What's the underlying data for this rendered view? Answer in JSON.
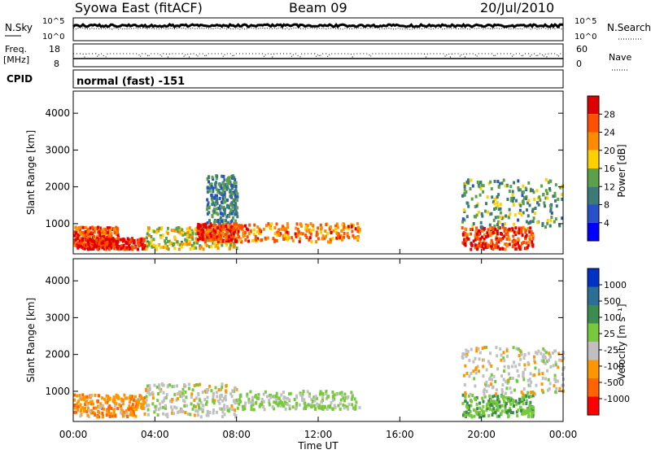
{
  "header": {
    "station": "Syowa East (fitACF)",
    "beam": "Beam 09",
    "date": "20/Jul/2010"
  },
  "aux_panels": {
    "nsky": {
      "label": "N.Sky",
      "ticks": [
        "10^5",
        "10^0"
      ]
    },
    "nsearch": {
      "label": "N.Search",
      "ticks": [
        "10^5",
        "10^0"
      ]
    },
    "freq": {
      "label": "Freq.",
      "unit": "[MHz]",
      "ticks": [
        "18",
        "8"
      ]
    },
    "nave": {
      "label": "Nave",
      "ticks": [
        "60",
        "0"
      ]
    },
    "cpid": {
      "label": "CPID",
      "value": "normal (fast) -151"
    }
  },
  "colors": {
    "power": [
      "#0000ff",
      "#2850c8",
      "#3c7a78",
      "#5ca04c",
      "#ffd000",
      "#ff8c00",
      "#ff5000",
      "#e00000"
    ],
    "velocity": [
      "#0032c8",
      "#2d6e96",
      "#3c8c50",
      "#78c83c",
      "#c0c0c0",
      "#ff9600",
      "#ff6400",
      "#ff0000"
    ]
  },
  "chart_data": [
    {
      "type": "heatmap",
      "panel": "power",
      "ylabel": "Slant Range [km]",
      "yticks": [
        1000,
        2000,
        3000,
        4000
      ],
      "ylim": [
        180,
        4600
      ],
      "xlim": [
        0,
        24
      ],
      "colorbar": {
        "label": "Power [dB]",
        "ticks": [
          "4",
          "8",
          "12",
          "16",
          "20",
          "24",
          "28"
        ],
        "range": [
          0,
          30
        ]
      },
      "regions": [
        {
          "t": [
            0,
            2.2
          ],
          "r": [
            400,
            900
          ],
          "v": 24
        },
        {
          "t": [
            0,
            3.5
          ],
          "r": [
            300,
            600
          ],
          "v": 28
        },
        {
          "t": [
            3.5,
            8
          ],
          "r": [
            300,
            900
          ],
          "v": 16
        },
        {
          "t": [
            6,
            8
          ],
          "r": [
            500,
            1000
          ],
          "v": 26
        },
        {
          "t": [
            6.5,
            8
          ],
          "r": [
            1000,
            2300
          ],
          "v": 10
        },
        {
          "t": [
            8,
            14
          ],
          "r": [
            500,
            1000
          ],
          "v": 22
        },
        {
          "t": [
            19,
            22.5
          ],
          "r": [
            300,
            900
          ],
          "v": 26
        },
        {
          "t": [
            19,
            24
          ],
          "r": [
            900,
            2200
          ],
          "v": 12
        }
      ]
    },
    {
      "type": "heatmap",
      "panel": "velocity",
      "ylabel": "Slant Range [km]",
      "xlabel": "Time UT",
      "xticks": [
        "00:00",
        "04:00",
        "08:00",
        "12:00",
        "16:00",
        "20:00",
        "00:00"
      ],
      "yticks": [
        1000,
        2000,
        3000,
        4000
      ],
      "ylim": [
        180,
        4600
      ],
      "xlim": [
        0,
        24
      ],
      "colorbar": {
        "label": "Velocity [m s⁻¹]",
        "ticks": [
          "1000",
          "500",
          "100",
          "25",
          "-25",
          "-100",
          "-500",
          "-1000"
        ],
        "range": [
          -1500,
          1500
        ]
      },
      "regions": [
        {
          "t": [
            0,
            3.5
          ],
          "r": [
            300,
            900
          ],
          "v": -600
        },
        {
          "t": [
            3.5,
            8
          ],
          "r": [
            300,
            1200
          ],
          "v": -150
        },
        {
          "t": [
            8,
            14
          ],
          "r": [
            500,
            1000
          ],
          "v": 60
        },
        {
          "t": [
            19,
            22.5
          ],
          "r": [
            300,
            900
          ],
          "v": 300
        },
        {
          "t": [
            19,
            24
          ],
          "r": [
            900,
            2200
          ],
          "v": -200
        }
      ]
    }
  ]
}
